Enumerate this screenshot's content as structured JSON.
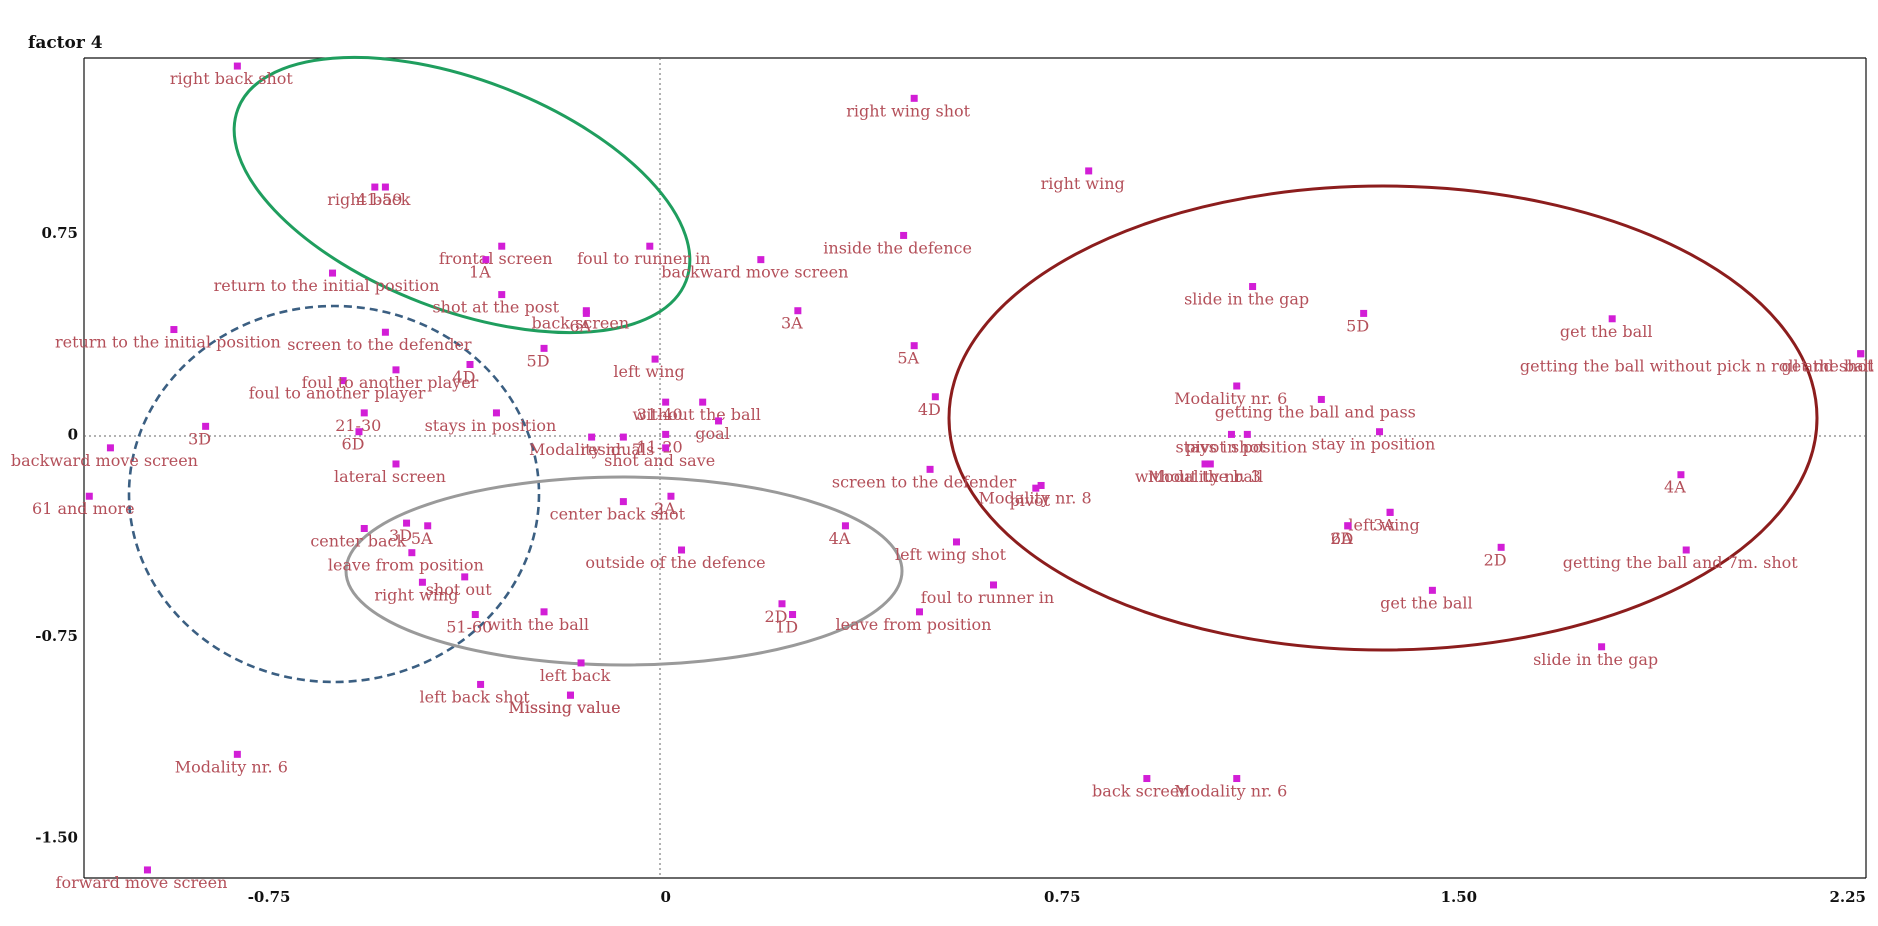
{
  "chart_data": {
    "type": "scatter",
    "ylabel": "factor 4",
    "xlabel": "",
    "xlim": [
      -1.1,
      2.27
    ],
    "ylim": [
      -1.65,
      1.4
    ],
    "xticks": [
      -0.75,
      0,
      0.75,
      1.5,
      2.25
    ],
    "yticks": [
      -1.5,
      -0.75,
      0,
      0.75
    ],
    "xtick_labels": [
      "-0.75",
      "0",
      "0.75",
      "1.50",
      "2.25"
    ],
    "ytick_labels": [
      "-1.50",
      "-0.75",
      "0",
      "0.75"
    ],
    "grid": false,
    "reference_lines": "dotted lines at x = 0 and y = 0",
    "marker_color": "#d21ed6",
    "label_color": "#b4505a",
    "points": [
      {
        "label": "right back shot",
        "x": -0.81,
        "y": 1.37
      },
      {
        "label": "right wing shot",
        "x": 0.47,
        "y": 1.25
      },
      {
        "label": "right back",
        "x": -0.55,
        "y": 0.92
      },
      {
        "label": "right wing",
        "x": 0.8,
        "y": 0.98
      },
      {
        "label": "41-59",
        "x": -0.53,
        "y": 0.92
      },
      {
        "label": "frontal screen",
        "x": -0.31,
        "y": 0.7
      },
      {
        "label": "return to the initial position",
        "x": -0.63,
        "y": 0.6
      },
      {
        "label": "1A",
        "x": -0.34,
        "y": 0.65
      },
      {
        "label": "foul to runner in",
        "x": -0.03,
        "y": 0.7
      },
      {
        "label": "inside the defence",
        "x": 0.45,
        "y": 0.74
      },
      {
        "label": "backward move screen",
        "x": 0.18,
        "y": 0.65
      },
      {
        "label": "shot at the post",
        "x": -0.31,
        "y": 0.52
      },
      {
        "label": "back screen",
        "x": -0.15,
        "y": 0.46
      },
      {
        "label": "6A",
        "x": -0.15,
        "y": 0.45
      },
      {
        "label": "3A",
        "x": 0.25,
        "y": 0.46
      },
      {
        "label": "5A",
        "x": 0.47,
        "y": 0.33
      },
      {
        "label": "return to the initial position",
        "x": -0.93,
        "y": 0.39
      },
      {
        "label": "screen to the defender",
        "x": -0.53,
        "y": 0.38
      },
      {
        "label": "foul to another player",
        "x": -0.61,
        "y": 0.2
      },
      {
        "label": "4D",
        "x": -0.37,
        "y": 0.26
      },
      {
        "label": "foul to another player",
        "x": -0.51,
        "y": 0.24
      },
      {
        "label": "5D",
        "x": -0.23,
        "y": 0.32
      },
      {
        "label": "left wing",
        "x": -0.02,
        "y": 0.28
      },
      {
        "label": "stays in position",
        "x": -0.32,
        "y": 0.08
      },
      {
        "label": "31-40",
        "x": 0.0,
        "y": 0.12
      },
      {
        "label": "without the ball",
        "x": 0.07,
        "y": 0.12
      },
      {
        "label": "4D",
        "x": 0.51,
        "y": 0.14
      },
      {
        "label": "goal",
        "x": 0.1,
        "y": 0.05
      },
      {
        "label": "21-30",
        "x": -0.57,
        "y": 0.08
      },
      {
        "label": "3D",
        "x": -0.87,
        "y": 0.03
      },
      {
        "label": "Modality nr. 7",
        "x": -0.14,
        "y": -0.01
      },
      {
        "label": "residuals",
        "x": -0.08,
        "y": -0.01
      },
      {
        "label": "11-20",
        "x": 0.0,
        "y": 0.0
      },
      {
        "label": "6D",
        "x": -0.58,
        "y": 0.01
      },
      {
        "label": "lateral screen",
        "x": -0.51,
        "y": -0.11
      },
      {
        "label": "backward move screen",
        "x": -1.05,
        "y": -0.05
      },
      {
        "label": "61 and more",
        "x": -1.09,
        "y": -0.23
      },
      {
        "label": "shot and save",
        "x": 0.0,
        "y": -0.05
      },
      {
        "label": "2A",
        "x": 0.01,
        "y": -0.23
      },
      {
        "label": "center back",
        "x": -0.57,
        "y": -0.35
      },
      {
        "label": "center back shot",
        "x": -0.08,
        "y": -0.25
      },
      {
        "label": "outside of the defence",
        "x": 0.03,
        "y": -0.43
      },
      {
        "label": "3D",
        "x": -0.49,
        "y": -0.33
      },
      {
        "label": "5A",
        "x": -0.45,
        "y": -0.34
      },
      {
        "label": "screen to the defender",
        "x": 0.5,
        "y": -0.13
      },
      {
        "label": "4A",
        "x": 0.34,
        "y": -0.34
      },
      {
        "label": "left wing shot",
        "x": 0.55,
        "y": -0.4
      },
      {
        "label": "Modality nr. 8",
        "x": 0.71,
        "y": -0.19
      },
      {
        "label": "pivot",
        "x": 0.7,
        "y": -0.2
      },
      {
        "label": "shot out",
        "x": -0.38,
        "y": -0.53
      },
      {
        "label": "right wing",
        "x": -0.46,
        "y": -0.55
      },
      {
        "label": "leave from position",
        "x": -0.48,
        "y": -0.44
      },
      {
        "label": "51-60",
        "x": -0.36,
        "y": -0.67
      },
      {
        "label": "with the ball",
        "x": -0.23,
        "y": -0.66
      },
      {
        "label": "2D",
        "x": 0.22,
        "y": -0.63
      },
      {
        "label": "1D",
        "x": 0.24,
        "y": -0.67
      },
      {
        "label": "foul to runner in",
        "x": 0.62,
        "y": -0.56
      },
      {
        "label": "leave from position",
        "x": 0.48,
        "y": -0.66
      },
      {
        "label": "left back",
        "x": -0.16,
        "y": -0.85
      },
      {
        "label": "left back shot",
        "x": -0.35,
        "y": -0.93
      },
      {
        "label": "Missing value",
        "x": -0.18,
        "y": -0.97
      },
      {
        "label": "Missing value",
        "x": -0.18,
        "y": -0.97
      },
      {
        "label": "Modality nr. 6",
        "x": -0.81,
        "y": -1.19
      },
      {
        "label": "forward move screen",
        "x": -0.98,
        "y": -1.62
      },
      {
        "label": "slide in the gap",
        "x": 1.11,
        "y": 0.55
      },
      {
        "label": "5D",
        "x": 1.32,
        "y": 0.45
      },
      {
        "label": "get the ball",
        "x": 1.79,
        "y": 0.43
      },
      {
        "label": "get the ball",
        "x": 2.26,
        "y": 0.3
      },
      {
        "label": "getting the ball without pick n roll and shot",
        "x": 2.26,
        "y": 0.3
      },
      {
        "label": "Modality nr. 6",
        "x": 1.08,
        "y": 0.18
      },
      {
        "label": "getting the ball and pass",
        "x": 1.24,
        "y": 0.13
      },
      {
        "label": "pivot shot",
        "x": 1.07,
        "y": 0.0
      },
      {
        "label": "stays in position",
        "x": 1.1,
        "y": 0.0
      },
      {
        "label": "stay in position",
        "x": 1.35,
        "y": 0.01
      },
      {
        "label": "without the ball",
        "x": 1.02,
        "y": -0.11
      },
      {
        "label": "Modality nr. 3",
        "x": 1.03,
        "y": -0.11
      },
      {
        "label": "left wing",
        "x": 1.37,
        "y": -0.29
      },
      {
        "label": "4A",
        "x": 1.92,
        "y": -0.15
      },
      {
        "label": "3A",
        "x": 1.37,
        "y": -0.29
      },
      {
        "label": "2D",
        "x": 1.29,
        "y": -0.34
      },
      {
        "label": "6A",
        "x": 1.29,
        "y": -0.34
      },
      {
        "label": "2D",
        "x": 1.58,
        "y": -0.42
      },
      {
        "label": "getting the ball and 7m. shot",
        "x": 1.93,
        "y": -0.43
      },
      {
        "label": "get the ball",
        "x": 1.45,
        "y": -0.58
      },
      {
        "label": "slide in the gap",
        "x": 1.77,
        "y": -0.79
      },
      {
        "label": "back screen",
        "x": 0.91,
        "y": -1.28
      },
      {
        "label": "Modality nr. 6",
        "x": 1.08,
        "y": -1.28
      }
    ],
    "ellipses": [
      {
        "name": "green",
        "color": "#1f9e5e",
        "style": "solid"
      },
      {
        "name": "blue",
        "color": "#3b5f82",
        "style": "dashed"
      },
      {
        "name": "gray",
        "color": "#9a9a9a",
        "style": "solid"
      },
      {
        "name": "darkred",
        "color": "#8c1d1d",
        "style": "solid"
      }
    ]
  }
}
